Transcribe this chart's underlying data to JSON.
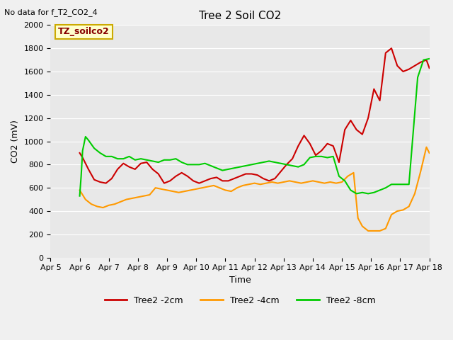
{
  "title": "Tree 2 Soil CO2",
  "no_data_text": "No data for f_T2_CO2_4",
  "xlabel": "Time",
  "ylabel": "CO2 (mV)",
  "ylim": [
    0,
    2000
  ],
  "xlim": [
    0,
    13
  ],
  "x_tick_positions": [
    0,
    1,
    2,
    3,
    4,
    5,
    6,
    7,
    8,
    9,
    10,
    11,
    12,
    13
  ],
  "x_tick_labels": [
    "Apr 5",
    "Apr 6",
    "Apr 7",
    "Apr 8",
    "Apr 9",
    "Apr 10",
    "Apr 11",
    "Apr 12",
    "Apr 13",
    "Apr 14",
    "Apr 15",
    "Apr 16",
    "Apr 17",
    "Apr 18"
  ],
  "y_ticks": [
    0,
    200,
    400,
    600,
    800,
    1000,
    1200,
    1400,
    1600,
    1800,
    2000
  ],
  "bg_color": "#e8e8e8",
  "fig_color": "#f0f0f0",
  "legend_label": "TZ_soilco2",
  "legend_box_facecolor": "#ffffcc",
  "legend_box_edgecolor": "#ccaa00",
  "legend_text_color": "#880000",
  "series": {
    "Tree2 -2cm": {
      "color": "#cc0000",
      "x": [
        1.0,
        1.1,
        1.3,
        1.5,
        1.7,
        1.9,
        2.1,
        2.3,
        2.5,
        2.7,
        2.9,
        3.1,
        3.3,
        3.5,
        3.7,
        3.9,
        4.1,
        4.3,
        4.5,
        4.7,
        4.9,
        5.1,
        5.3,
        5.5,
        5.7,
        5.9,
        6.1,
        6.3,
        6.5,
        6.7,
        6.9,
        7.1,
        7.3,
        7.5,
        7.7,
        7.9,
        8.1,
        8.3,
        8.5,
        8.7,
        8.9,
        9.1,
        9.3,
        9.5,
        9.7,
        9.9,
        10.1,
        10.3,
        10.5,
        10.7,
        10.9,
        11.1,
        11.3,
        11.5,
        11.7,
        11.9,
        12.1,
        12.3,
        12.5,
        12.7,
        12.9,
        13.0
      ],
      "y": [
        900,
        860,
        760,
        670,
        650,
        640,
        680,
        760,
        810,
        780,
        760,
        810,
        820,
        760,
        720,
        640,
        660,
        700,
        730,
        700,
        660,
        640,
        660,
        680,
        690,
        660,
        660,
        680,
        700,
        720,
        720,
        710,
        680,
        660,
        680,
        740,
        800,
        850,
        960,
        1050,
        980,
        880,
        920,
        980,
        960,
        820,
        1100,
        1180,
        1100,
        1060,
        1200,
        1450,
        1350,
        1760,
        1800,
        1650,
        1600,
        1620,
        1650,
        1680,
        1700,
        1630
      ]
    },
    "Tree2 -4cm": {
      "color": "#ff9900",
      "x": [
        1.0,
        1.2,
        1.4,
        1.6,
        1.8,
        2.0,
        2.2,
        2.4,
        2.6,
        2.8,
        3.0,
        3.2,
        3.4,
        3.6,
        3.8,
        4.0,
        4.2,
        4.4,
        4.6,
        4.8,
        5.0,
        5.2,
        5.4,
        5.6,
        5.8,
        6.0,
        6.2,
        6.4,
        6.6,
        6.8,
        7.0,
        7.2,
        7.4,
        7.6,
        7.8,
        8.0,
        8.2,
        8.4,
        8.6,
        8.8,
        9.0,
        9.2,
        9.4,
        9.6,
        9.8,
        10.0,
        10.2,
        10.4,
        10.55,
        10.7,
        10.9,
        11.1,
        11.3,
        11.5,
        11.7,
        11.9,
        12.1,
        12.3,
        12.5,
        12.7,
        12.9,
        13.0
      ],
      "y": [
        580,
        500,
        460,
        440,
        430,
        450,
        460,
        480,
        500,
        510,
        520,
        530,
        540,
        600,
        590,
        580,
        570,
        560,
        570,
        580,
        590,
        600,
        610,
        620,
        600,
        580,
        570,
        600,
        620,
        630,
        640,
        630,
        640,
        650,
        640,
        650,
        660,
        650,
        640,
        650,
        660,
        650,
        640,
        650,
        640,
        650,
        700,
        730,
        340,
        270,
        230,
        230,
        230,
        250,
        370,
        400,
        410,
        440,
        550,
        740,
        950,
        900
      ]
    },
    "Tree2 -8cm": {
      "color": "#00cc00",
      "x": [
        1.0,
        1.05,
        1.1,
        1.2,
        1.3,
        1.5,
        1.7,
        1.9,
        2.1,
        2.3,
        2.5,
        2.7,
        2.9,
        3.1,
        3.3,
        3.5,
        3.7,
        3.9,
        4.1,
        4.3,
        4.5,
        4.7,
        4.9,
        5.1,
        5.3,
        5.5,
        5.7,
        5.9,
        6.1,
        6.3,
        6.5,
        6.7,
        6.9,
        7.1,
        7.3,
        7.5,
        7.7,
        7.9,
        8.1,
        8.3,
        8.5,
        8.7,
        8.9,
        9.1,
        9.3,
        9.5,
        9.7,
        9.9,
        10.1,
        10.3,
        10.5,
        10.7,
        10.9,
        11.1,
        11.3,
        11.5,
        11.7,
        12.0,
        12.3,
        12.6,
        12.8,
        13.0
      ],
      "y": [
        530,
        700,
        920,
        1040,
        1010,
        940,
        900,
        870,
        870,
        850,
        850,
        870,
        840,
        850,
        840,
        830,
        820,
        840,
        840,
        850,
        820,
        800,
        800,
        800,
        810,
        790,
        770,
        750,
        760,
        770,
        780,
        790,
        800,
        810,
        820,
        830,
        820,
        810,
        800,
        790,
        780,
        800,
        860,
        870,
        870,
        860,
        870,
        700,
        660,
        580,
        550,
        560,
        550,
        560,
        580,
        600,
        630,
        630,
        630,
        1550,
        1700,
        1710
      ]
    }
  }
}
